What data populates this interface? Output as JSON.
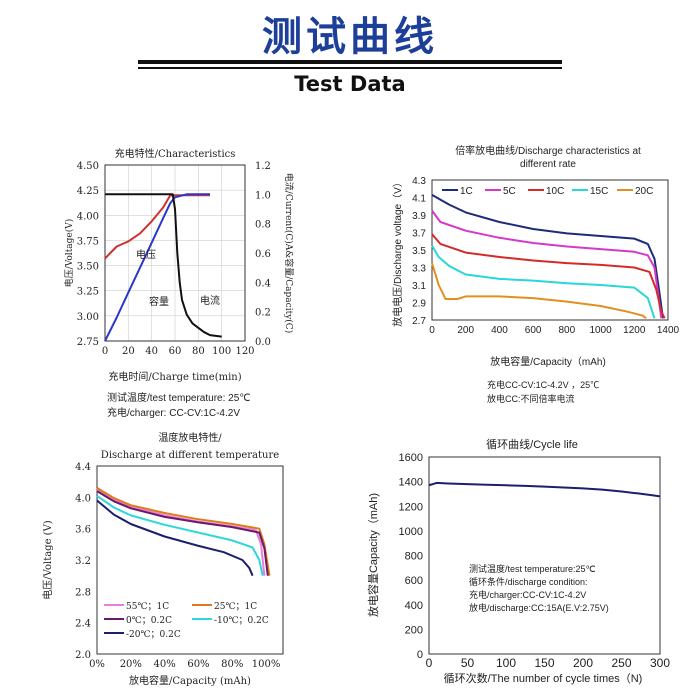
{
  "header": {
    "title": "测试曲线",
    "subtitle": "Test Data"
  },
  "chart_data": [
    {
      "id": "charge",
      "type": "line",
      "title": "充电特性/Characteristics",
      "xlabel": "充电时间/Charge time(min)",
      "ylabel_left": "电压/Voltage(V)",
      "ylabel_right": "电流/Current(C)A&容量/Capacity(C)",
      "xlim": [
        0,
        120
      ],
      "ylim_left": [
        2.75,
        4.5
      ],
      "ylim_right": [
        0,
        1.2
      ],
      "x_ticks": [
        "0",
        "20",
        "40",
        "60",
        "80",
        "100",
        "120"
      ],
      "y_ticks_left": [
        "2.75",
        "3.00",
        "3.25",
        "3.50",
        "3.75",
        "4.00",
        "4.25",
        "4.50"
      ],
      "y_ticks_right": [
        "0.0",
        "0.2",
        "0.4",
        "0.6",
        "0.8",
        "1.0",
        "1.2"
      ],
      "annotations": [
        "电压",
        "容量",
        "电流"
      ],
      "notes": [
        "测试温度/test temperature: 25℃",
        "充电/charger: CC-CV:1C-4.2V"
      ],
      "series": [
        {
          "name": "电压",
          "axis": "left",
          "color": "#d03030",
          "points": [
            [
              0,
              3.57
            ],
            [
              5,
              3.63
            ],
            [
              10,
              3.69
            ],
            [
              20,
              3.74
            ],
            [
              30,
              3.82
            ],
            [
              40,
              3.94
            ],
            [
              50,
              4.08
            ],
            [
              56,
              4.2
            ],
            [
              60,
              4.2
            ],
            [
              90,
              4.2
            ]
          ]
        },
        {
          "name": "容量",
          "axis": "right",
          "color": "#2b37c8",
          "points": [
            [
              0,
              0
            ],
            [
              10,
              0.16
            ],
            [
              20,
              0.33
            ],
            [
              30,
              0.5
            ],
            [
              40,
              0.67
            ],
            [
              50,
              0.84
            ],
            [
              56,
              0.94
            ],
            [
              60,
              0.98
            ],
            [
              70,
              1.0
            ],
            [
              90,
              1.0
            ]
          ]
        },
        {
          "name": "电流",
          "axis": "right",
          "color": "#111111",
          "points": [
            [
              0,
              1.0
            ],
            [
              58,
              1.0
            ],
            [
              60,
              0.9
            ],
            [
              62,
              0.6
            ],
            [
              64,
              0.4
            ],
            [
              66,
              0.28
            ],
            [
              70,
              0.18
            ],
            [
              75,
              0.12
            ],
            [
              80,
              0.09
            ],
            [
              85,
              0.06
            ],
            [
              90,
              0.04
            ],
            [
              100,
              0.03
            ]
          ]
        }
      ]
    },
    {
      "id": "rate",
      "type": "line",
      "title": "倍率放电曲线/Discharge characteristics at different rate",
      "xlabel": "放电容量/Capacity（mAh)",
      "ylabel": "放电电压/Discharge voltage（V）",
      "xlim": [
        0,
        1400
      ],
      "ylim": [
        2.7,
        4.3
      ],
      "x_ticks": [
        "0",
        "200",
        "400",
        "600",
        "800",
        "1000",
        "1200",
        "1400"
      ],
      "y_ticks": [
        "2.7",
        "2.9",
        "3.1",
        "3.3",
        "3.5",
        "3.7",
        "3.9",
        "4.1",
        "4.3"
      ],
      "notes": [
        "充电CC-CV:1C-4.2V ，25℃",
        "放电CC:不同倍率电流"
      ],
      "series": [
        {
          "name": "1C",
          "color": "#1f2a7a",
          "points": [
            [
              0,
              4.13
            ],
            [
              100,
              4.02
            ],
            [
              200,
              3.93
            ],
            [
              400,
              3.82
            ],
            [
              600,
              3.74
            ],
            [
              800,
              3.69
            ],
            [
              1000,
              3.66
            ],
            [
              1200,
              3.63
            ],
            [
              1280,
              3.57
            ],
            [
              1320,
              3.4
            ],
            [
              1350,
              3.0
            ],
            [
              1370,
              2.72
            ]
          ]
        },
        {
          "name": "5C",
          "color": "#d638c8",
          "points": [
            [
              0,
              3.95
            ],
            [
              50,
              3.82
            ],
            [
              200,
              3.72
            ],
            [
              400,
              3.64
            ],
            [
              600,
              3.58
            ],
            [
              800,
              3.54
            ],
            [
              1000,
              3.51
            ],
            [
              1200,
              3.48
            ],
            [
              1280,
              3.44
            ],
            [
              1320,
              3.3
            ],
            [
              1345,
              2.95
            ],
            [
              1360,
              2.72
            ]
          ]
        },
        {
          "name": "10C",
          "color": "#d32a2a",
          "points": [
            [
              0,
              3.68
            ],
            [
              50,
              3.57
            ],
            [
              200,
              3.47
            ],
            [
              400,
              3.42
            ],
            [
              600,
              3.38
            ],
            [
              800,
              3.35
            ],
            [
              1000,
              3.33
            ],
            [
              1200,
              3.3
            ],
            [
              1290,
              3.25
            ],
            [
              1330,
              3.05
            ],
            [
              1360,
              2.8
            ],
            [
              1380,
              2.72
            ]
          ]
        },
        {
          "name": "15C",
          "color": "#2ad6d6",
          "points": [
            [
              0,
              3.55
            ],
            [
              40,
              3.42
            ],
            [
              100,
              3.32
            ],
            [
              200,
              3.22
            ],
            [
              400,
              3.17
            ],
            [
              600,
              3.15
            ],
            [
              800,
              3.12
            ],
            [
              1000,
              3.1
            ],
            [
              1200,
              3.07
            ],
            [
              1280,
              2.95
            ],
            [
              1320,
              2.72
            ]
          ]
        },
        {
          "name": "20C",
          "color": "#e09020",
          "points": [
            [
              0,
              3.35
            ],
            [
              40,
              3.1
            ],
            [
              80,
              2.94
            ],
            [
              150,
              2.94
            ],
            [
              200,
              2.97
            ],
            [
              400,
              2.97
            ],
            [
              600,
              2.95
            ],
            [
              800,
              2.91
            ],
            [
              1000,
              2.86
            ],
            [
              1150,
              2.8
            ],
            [
              1250,
              2.75
            ],
            [
              1270,
              2.72
            ]
          ]
        }
      ]
    },
    {
      "id": "temp",
      "type": "line",
      "title": "温度放电特性/Discharge at different temperature",
      "xlabel": "放电容量/Capacity (mAh)",
      "ylabel": "电压/Voltage (V)",
      "xlim": [
        0,
        110
      ],
      "ylim": [
        2.0,
        4.4
      ],
      "x_ticks": [
        "0%",
        "20%",
        "40%",
        "60%",
        "80%",
        "100%"
      ],
      "y_ticks": [
        "2.0",
        "2.4",
        "2.8",
        "3.2",
        "3.6",
        "4.0",
        "4.4"
      ],
      "series": [
        {
          "name": "55℃；1C",
          "color": "#e67fe0",
          "points": [
            [
              0,
              4.1
            ],
            [
              10,
              3.97
            ],
            [
              20,
              3.88
            ],
            [
              40,
              3.77
            ],
            [
              60,
              3.69
            ],
            [
              80,
              3.63
            ],
            [
              94,
              3.58
            ],
            [
              97,
              3.4
            ],
            [
              99,
              3.0
            ]
          ]
        },
        {
          "name": "25℃；1C",
          "color": "#e07a1a",
          "points": [
            [
              0,
              4.12
            ],
            [
              10,
              3.99
            ],
            [
              20,
              3.9
            ],
            [
              40,
              3.8
            ],
            [
              60,
              3.72
            ],
            [
              80,
              3.66
            ],
            [
              96,
              3.6
            ],
            [
              99,
              3.4
            ],
            [
              102,
              3.0
            ]
          ]
        },
        {
          "name": "0℃；0.2C",
          "color": "#6a1a6a",
          "points": [
            [
              0,
              4.08
            ],
            [
              10,
              3.95
            ],
            [
              20,
              3.86
            ],
            [
              40,
              3.75
            ],
            [
              60,
              3.68
            ],
            [
              80,
              3.62
            ],
            [
              96,
              3.55
            ],
            [
              99,
              3.35
            ],
            [
              101,
              3.0
            ]
          ]
        },
        {
          "name": "-10℃；0.2C",
          "color": "#2fd8d8",
          "points": [
            [
              0,
              4.02
            ],
            [
              10,
              3.87
            ],
            [
              20,
              3.77
            ],
            [
              40,
              3.65
            ],
            [
              60,
              3.55
            ],
            [
              80,
              3.45
            ],
            [
              92,
              3.36
            ],
            [
              96,
              3.2
            ],
            [
              98,
              3.0
            ]
          ]
        },
        {
          "name": "-20℃；0.2C",
          "color": "#1b1f6e",
          "points": [
            [
              0,
              3.96
            ],
            [
              10,
              3.78
            ],
            [
              20,
              3.66
            ],
            [
              40,
              3.5
            ],
            [
              60,
              3.38
            ],
            [
              75,
              3.3
            ],
            [
              86,
              3.2
            ],
            [
              90,
              3.1
            ],
            [
              92,
              3.0
            ]
          ]
        }
      ]
    },
    {
      "id": "cycle",
      "type": "line",
      "title": "循环曲线/Cycle life",
      "xlabel": "循环次数/The number of cycle times（N)",
      "ylabel": "放电容量Capacity（mAh)",
      "xlim": [
        0,
        300
      ],
      "ylim": [
        0,
        1600
      ],
      "x_ticks": [
        "0",
        "50",
        "100",
        "150",
        "200",
        "250",
        "300"
      ],
      "y_ticks": [
        "0",
        "200",
        "400",
        "600",
        "800",
        "1000",
        "1200",
        "1400",
        "1600"
      ],
      "notes": [
        "测试温度/test temperature:25℃",
        "循环条件/discharge condition:",
        "充电/charger:CC-CV:1C-4.2V",
        "放电/discharge:CC:15A(E.V:2.75V)"
      ],
      "series": [
        {
          "name": "",
          "color": "#1b1f6e",
          "points": [
            [
              0,
              1372
            ],
            [
              5,
              1380
            ],
            [
              10,
              1390
            ],
            [
              25,
              1385
            ],
            [
              50,
              1380
            ],
            [
              75,
              1375
            ],
            [
              100,
              1370
            ],
            [
              125,
              1365
            ],
            [
              150,
              1360
            ],
            [
              175,
              1352
            ],
            [
              200,
              1345
            ],
            [
              225,
              1335
            ],
            [
              250,
              1320
            ],
            [
              270,
              1305
            ],
            [
              290,
              1290
            ],
            [
              300,
              1280
            ]
          ]
        }
      ]
    }
  ]
}
